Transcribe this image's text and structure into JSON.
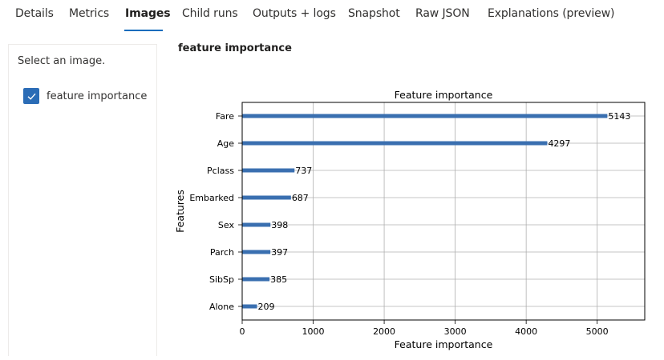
{
  "tabs": [
    {
      "label": "Details"
    },
    {
      "label": "Metrics"
    },
    {
      "label": "Images",
      "active": true
    },
    {
      "label": "Child runs"
    },
    {
      "label": "Outputs + logs"
    },
    {
      "label": "Snapshot"
    },
    {
      "label": "Raw JSON"
    },
    {
      "label": "Explanations (preview)"
    }
  ],
  "sidebar": {
    "prompt": "Select an image.",
    "images": [
      {
        "label": "feature importance",
        "checked": true
      }
    ]
  },
  "main": {
    "heading": "feature importance"
  },
  "colors": {
    "accent": "#0f6cbd",
    "bar": "#3a6fb0",
    "checkbox": "#2b6cb6"
  },
  "chart_data": {
    "type": "bar",
    "orientation": "horizontal",
    "title": "Feature importance",
    "xlabel": "Feature importance",
    "ylabel": "Features",
    "categories": [
      "Fare",
      "Age",
      "Pclass",
      "Embarked",
      "Sex",
      "Parch",
      "SibSp",
      "Alone"
    ],
    "values": [
      5143,
      4297,
      737,
      687,
      398,
      397,
      385,
      209
    ],
    "data_labels": [
      "5143",
      "4297",
      "737",
      "687",
      "398",
      "397",
      "385",
      "209"
    ],
    "xlim": [
      0,
      5670
    ],
    "xticks": [
      0,
      1000,
      2000,
      3000,
      4000,
      5000
    ],
    "xtick_labels": [
      "0",
      "1000",
      "2000",
      "3000",
      "4000",
      "5000"
    ],
    "grid": true
  }
}
